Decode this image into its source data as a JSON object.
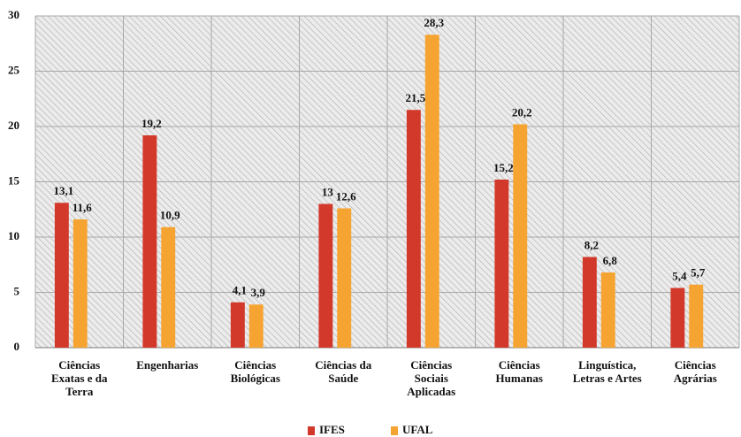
{
  "chart_data": {
    "type": "bar",
    "categories": [
      "Ciências Exatas e da Terra",
      "Engenharias",
      "Ciências Biológicas",
      "Ciências da Saúde",
      "Ciências Sociais Aplicadas",
      "Ciências Humanas",
      "Linguística, Letras e Artes",
      "Ciências Agrárias"
    ],
    "series": [
      {
        "name": "IFES",
        "color": "#d3392a",
        "values": [
          13.1,
          19.2,
          4.1,
          13,
          21.5,
          15.2,
          8.2,
          5.4
        ],
        "value_labels": [
          "13,1",
          "19,2",
          "4,1",
          "13",
          "21,5",
          "15,2",
          "8,2",
          "5,4"
        ]
      },
      {
        "name": "UFAL",
        "color": "#f6a431",
        "values": [
          11.6,
          10.9,
          3.9,
          12.6,
          28.3,
          20.2,
          6.8,
          5.7
        ],
        "value_labels": [
          "11,6",
          "10,9",
          "3,9",
          "12,6",
          "28,3",
          "20,2",
          "6,8",
          "5,7"
        ]
      }
    ],
    "ylim": [
      0,
      30
    ],
    "yticks": [
      0,
      5,
      10,
      15,
      20,
      25,
      30
    ],
    "grid": true,
    "legend": "bottom"
  }
}
